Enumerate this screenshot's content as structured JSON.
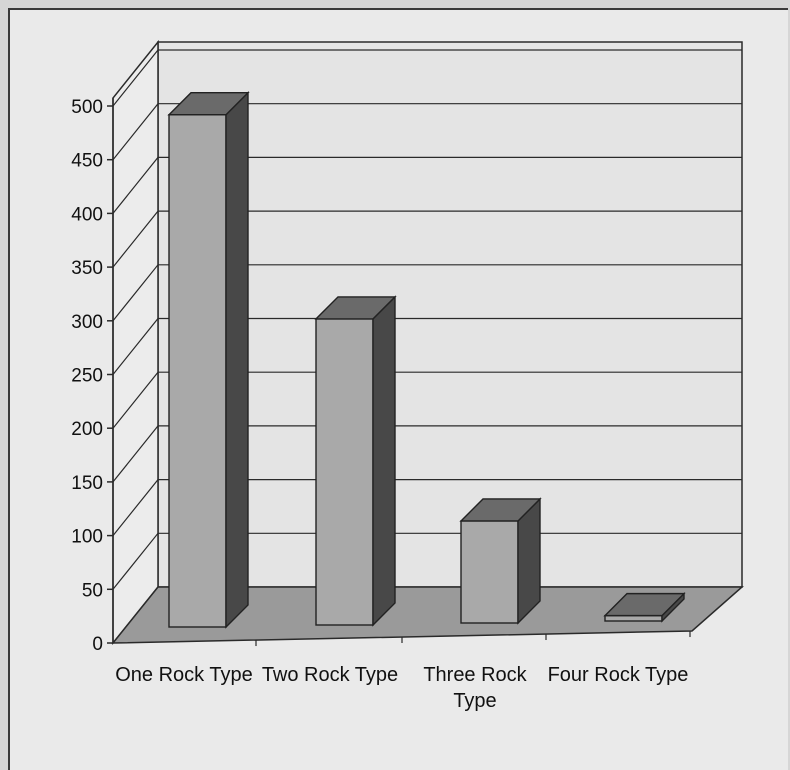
{
  "chart_data": {
    "type": "bar",
    "categories": [
      "One Rock Type",
      "Two Rock Type",
      "Three Rock Type",
      "Four Rock Type"
    ],
    "category_label_lines": [
      [
        "One Rock Type"
      ],
      [
        "Two Rock Type"
      ],
      [
        "Three Rock",
        "Type"
      ],
      [
        "Four Rock Type"
      ]
    ],
    "values": [
      477,
      285,
      95,
      5
    ],
    "ylim": [
      0,
      500
    ],
    "yticks": [
      0,
      50,
      100,
      150,
      200,
      250,
      300,
      350,
      400,
      450,
      500
    ],
    "title": "",
    "xlabel": "",
    "ylabel": "",
    "grid": true,
    "style": "3d-column",
    "colors": {
      "bar_front": "#a9a9a9",
      "bar_top": "#6a6a6a",
      "bar_side": "#484848",
      "floor": "#9a9a9a",
      "wall": "#e4e4e4",
      "grid": "#2a2a2a"
    }
  }
}
